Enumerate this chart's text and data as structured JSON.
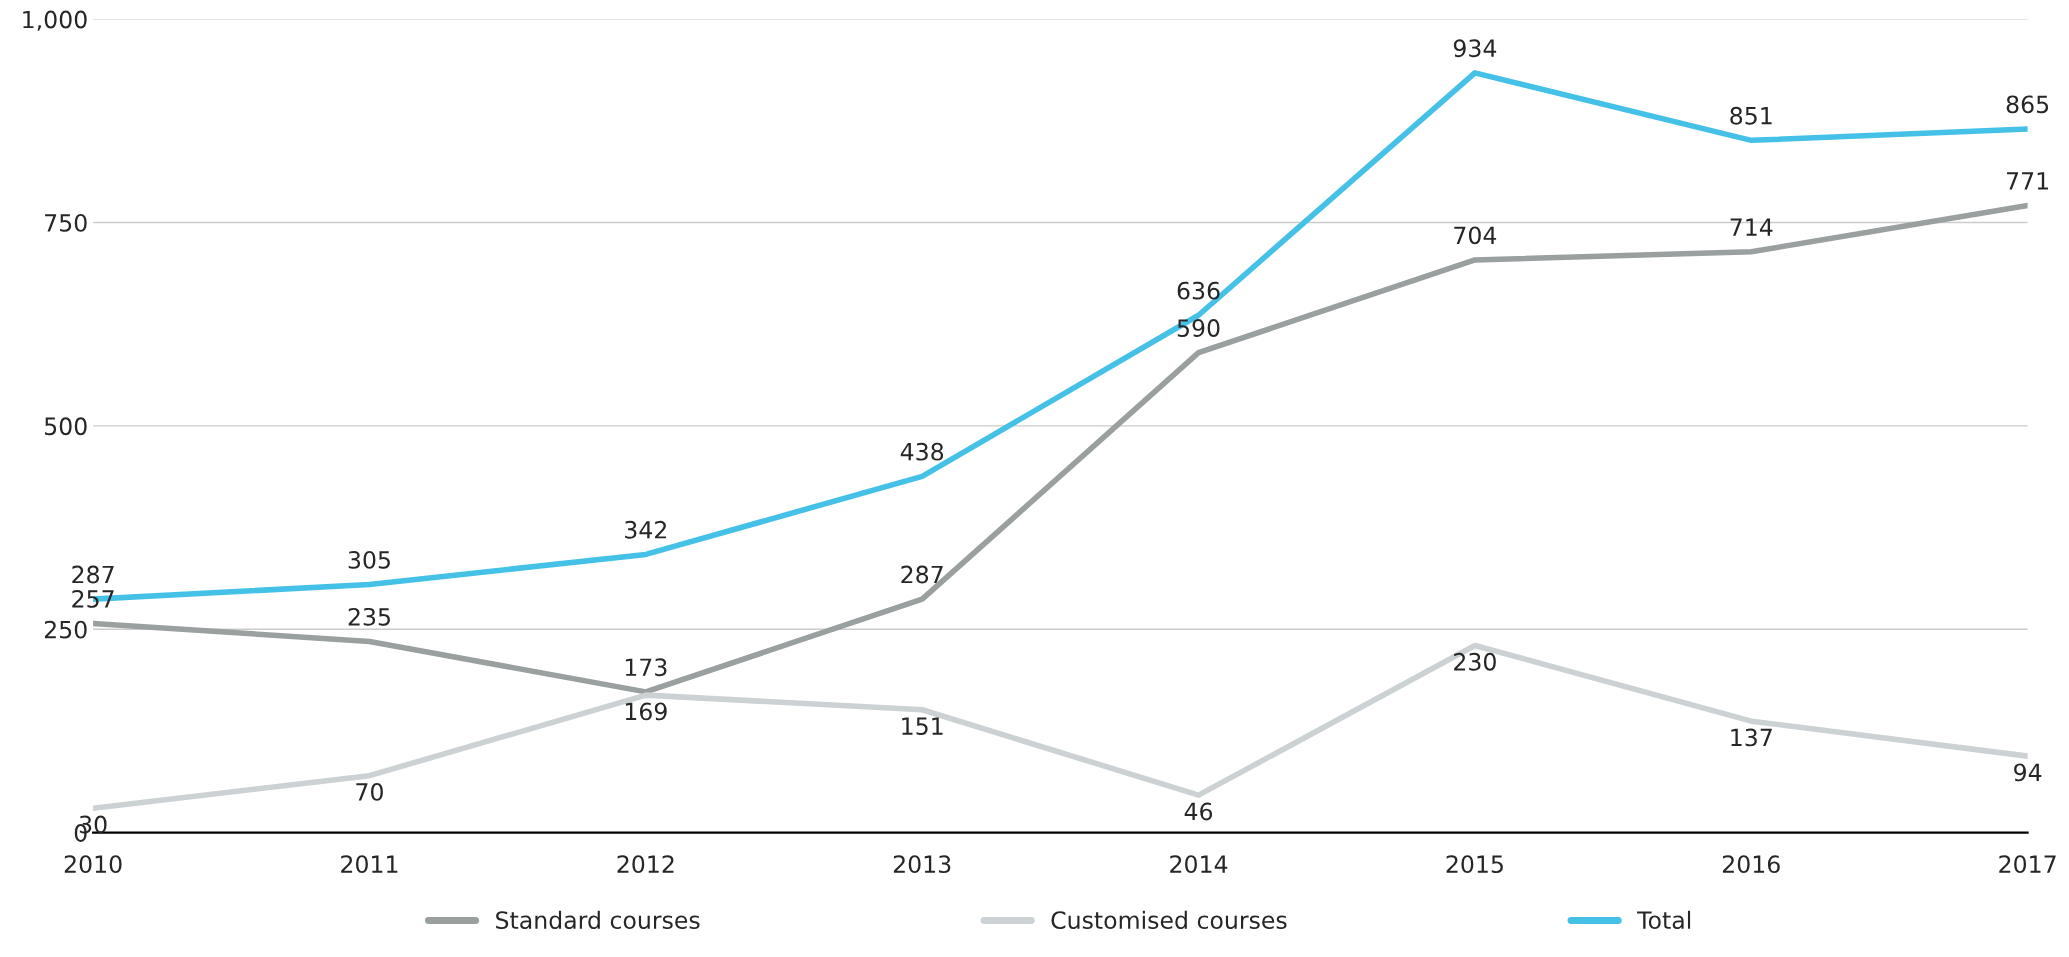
{
  "chart_data": {
    "type": "line",
    "categories": [
      "2010",
      "2011",
      "2012",
      "2013",
      "2014",
      "2015",
      "2016",
      "2017"
    ],
    "series": [
      {
        "name": "Standard courses",
        "color": "#9a9fa0",
        "values": [
          257,
          235,
          173,
          287,
          590,
          704,
          714,
          771
        ]
      },
      {
        "name": "Customised courses",
        "color": "#ccd1d4",
        "values": [
          30,
          70,
          169,
          151,
          46,
          230,
          137,
          94
        ]
      },
      {
        "name": "Total",
        "color": "#45c1e8",
        "values": [
          287,
          305,
          342,
          438,
          636,
          934,
          851,
          865
        ]
      }
    ],
    "ylim": [
      0,
      1000
    ],
    "yticks": [
      0,
      250,
      500,
      750,
      {
        "value": 1000,
        "label": "1,000"
      }
    ],
    "grid": "y",
    "legend": "bottom",
    "data_labels": true,
    "marker": "none",
    "line_style": "solid"
  }
}
